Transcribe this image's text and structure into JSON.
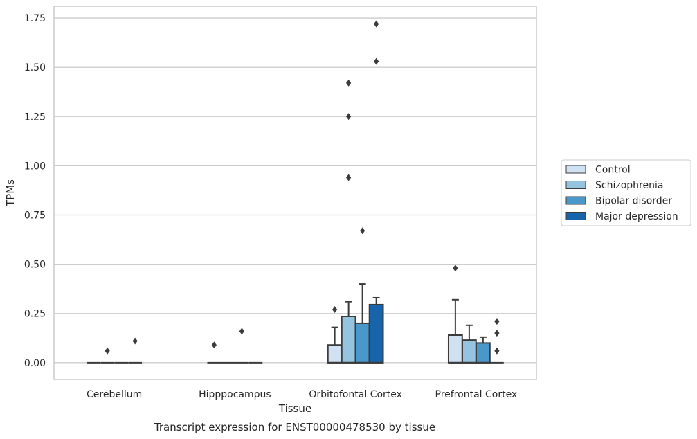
{
  "chart_data": {
    "type": "box",
    "xlabel": "Tissue",
    "ylabel": "TPMs",
    "caption": "Transcript expression for ENST00000478530 by tissue",
    "ylim": [
      -0.085,
      1.81
    ],
    "yticks": [
      0.0,
      0.25,
      0.5,
      0.75,
      1.0,
      1.25,
      1.5,
      1.75
    ],
    "ytick_labels": [
      "0.00",
      "0.25",
      "0.50",
      "0.75",
      "1.00",
      "1.25",
      "1.50",
      "1.75"
    ],
    "grid": true,
    "legend_position": "right",
    "categories": [
      "Cerebellum",
      "Hipppocampus",
      "Orbitofontal Cortex",
      "Prefrontal Cortex"
    ],
    "series": [
      {
        "name": "Control",
        "color": "#d0e1f2",
        "boxes": [
          {
            "q1": 0,
            "median": 0,
            "q3": 0,
            "whisker_low": 0,
            "whisker_high": 0,
            "outliers": []
          },
          {
            "q1": 0,
            "median": 0,
            "q3": 0,
            "whisker_low": 0,
            "whisker_high": 0,
            "outliers": [
              0.09
            ]
          },
          {
            "q1": 0,
            "median": 0,
            "q3": 0.09,
            "whisker_low": 0,
            "whisker_high": 0.18,
            "outliers": [
              0.27
            ]
          },
          {
            "q1": 0,
            "median": 0,
            "q3": 0.14,
            "whisker_low": 0,
            "whisker_high": 0.32,
            "outliers": [
              0.48
            ]
          }
        ]
      },
      {
        "name": "Schizophrenia",
        "color": "#94c4df",
        "boxes": [
          {
            "q1": 0,
            "median": 0,
            "q3": 0,
            "whisker_low": 0,
            "whisker_high": 0,
            "outliers": [
              0.06
            ]
          },
          {
            "q1": 0,
            "median": 0,
            "q3": 0,
            "whisker_low": 0,
            "whisker_high": 0,
            "outliers": []
          },
          {
            "q1": 0,
            "median": 0,
            "q3": 0.235,
            "whisker_low": 0,
            "whisker_high": 0.31,
            "outliers": [
              0.94,
              1.25,
              1.42
            ]
          },
          {
            "q1": 0,
            "median": 0,
            "q3": 0.115,
            "whisker_low": 0,
            "whisker_high": 0.19,
            "outliers": []
          }
        ]
      },
      {
        "name": "Bipolar disorder",
        "color": "#4a98c9",
        "boxes": [
          {
            "q1": 0,
            "median": 0,
            "q3": 0,
            "whisker_low": 0,
            "whisker_high": 0,
            "outliers": []
          },
          {
            "q1": 0,
            "median": 0,
            "q3": 0,
            "whisker_low": 0,
            "whisker_high": 0,
            "outliers": [
              0.16
            ]
          },
          {
            "q1": 0,
            "median": 0,
            "q3": 0.2,
            "whisker_low": 0,
            "whisker_high": 0.4,
            "outliers": [
              0.67
            ]
          },
          {
            "q1": 0,
            "median": 0,
            "q3": 0.1,
            "whisker_low": 0,
            "whisker_high": 0.13,
            "outliers": []
          }
        ]
      },
      {
        "name": "Major depression",
        "color": "#1764ab",
        "boxes": [
          {
            "q1": 0,
            "median": 0,
            "q3": 0,
            "whisker_low": 0,
            "whisker_high": 0,
            "outliers": [
              0.11
            ]
          },
          {
            "q1": 0,
            "median": 0,
            "q3": 0,
            "whisker_low": 0,
            "whisker_high": 0,
            "outliers": []
          },
          {
            "q1": 0,
            "median": 0,
            "q3": 0.295,
            "whisker_low": 0,
            "whisker_high": 0.33,
            "outliers": [
              1.53,
              1.72
            ]
          },
          {
            "q1": 0,
            "median": 0,
            "q3": 0,
            "whisker_low": 0,
            "whisker_high": 0,
            "outliers": [
              0.06,
              0.15,
              0.21
            ]
          }
        ]
      }
    ]
  }
}
